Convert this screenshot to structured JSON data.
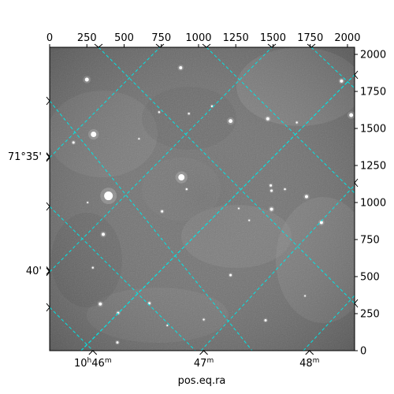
{
  "chart_data": {
    "type": "image",
    "xlabel": "pos.eq.ra",
    "pixel_axis_top": {
      "range": [
        0,
        2048
      ],
      "ticks": [
        0,
        250,
        500,
        750,
        1000,
        1250,
        1500,
        1750,
        2000
      ],
      "labels": [
        "0",
        "250",
        "500",
        "750",
        "1000",
        "1250",
        "1500",
        "1750",
        "2000"
      ]
    },
    "pixel_axis_right": {
      "range": [
        0,
        2048
      ],
      "ticks": [
        0,
        250,
        500,
        750,
        1000,
        1250,
        1500,
        1750,
        2000
      ],
      "labels": [
        "0",
        "250",
        "500",
        "750",
        "1000",
        "1250",
        "1500",
        "1750",
        "2000"
      ]
    },
    "ra_axis_bottom": {
      "ticks": [
        {
          "label": "10h46m",
          "pixel": 290
        },
        {
          "label": "47m",
          "pixel": 1035
        },
        {
          "label": "48m",
          "pixel": 1745
        }
      ]
    },
    "dec_axis_left": {
      "ticks": [
        {
          "label": "71°35'",
          "pixel": 1310
        },
        {
          "label": "40'",
          "pixel": 540
        }
      ]
    },
    "grid": true,
    "grid_color": "#00e5e5",
    "grid_style": "dashed",
    "image_colormap": "gray",
    "stars": [
      {
        "x": 395,
        "y": 1045,
        "r": 5.5
      },
      {
        "x": 885,
        "y": 1170,
        "r": 4
      },
      {
        "x": 295,
        "y": 1460,
        "r": 3.5
      },
      {
        "x": 250,
        "y": 1830,
        "r": 2.5
      },
      {
        "x": 880,
        "y": 1910,
        "r": 2
      },
      {
        "x": 1215,
        "y": 1550,
        "r": 2.5
      },
      {
        "x": 1465,
        "y": 1565,
        "r": 2
      },
      {
        "x": 2025,
        "y": 1590,
        "r": 2.5
      },
      {
        "x": 1725,
        "y": 1040,
        "r": 2
      },
      {
        "x": 1490,
        "y": 1080,
        "r": 1.5
      },
      {
        "x": 1485,
        "y": 1115,
        "r": 1.5
      },
      {
        "x": 1490,
        "y": 955,
        "r": 2
      },
      {
        "x": 1825,
        "y": 865,
        "r": 2
      },
      {
        "x": 360,
        "y": 785,
        "r": 2
      },
      {
        "x": 755,
        "y": 940,
        "r": 1.5
      },
      {
        "x": 1215,
        "y": 510,
        "r": 1.5
      },
      {
        "x": 340,
        "y": 315,
        "r": 2
      },
      {
        "x": 460,
        "y": 255,
        "r": 1.5
      },
      {
        "x": 455,
        "y": 55,
        "r": 1.5
      },
      {
        "x": 670,
        "y": 320,
        "r": 1.5
      },
      {
        "x": 1450,
        "y": 205,
        "r": 1.5
      },
      {
        "x": 1035,
        "y": 210,
        "r": 1.2
      },
      {
        "x": 160,
        "y": 1405,
        "r": 1.5
      },
      {
        "x": 735,
        "y": 1610,
        "r": 1.2
      },
      {
        "x": 935,
        "y": 1600,
        "r": 1.2
      },
      {
        "x": 1090,
        "y": 1650,
        "r": 1.2
      },
      {
        "x": 1580,
        "y": 1090,
        "r": 1.2
      },
      {
        "x": 1660,
        "y": 1540,
        "r": 1.2
      },
      {
        "x": 920,
        "y": 1090,
        "r": 1.2
      },
      {
        "x": 290,
        "y": 560,
        "r": 1.2
      },
      {
        "x": 1270,
        "y": 960,
        "r": 1
      },
      {
        "x": 255,
        "y": 1000,
        "r": 1
      },
      {
        "x": 1715,
        "y": 370,
        "r": 1
      },
      {
        "x": 790,
        "y": 170,
        "r": 1
      },
      {
        "x": 1340,
        "y": 880,
        "r": 1
      },
      {
        "x": 600,
        "y": 1430,
        "r": 1
      },
      {
        "x": 1960,
        "y": 1820,
        "r": 2
      }
    ]
  }
}
